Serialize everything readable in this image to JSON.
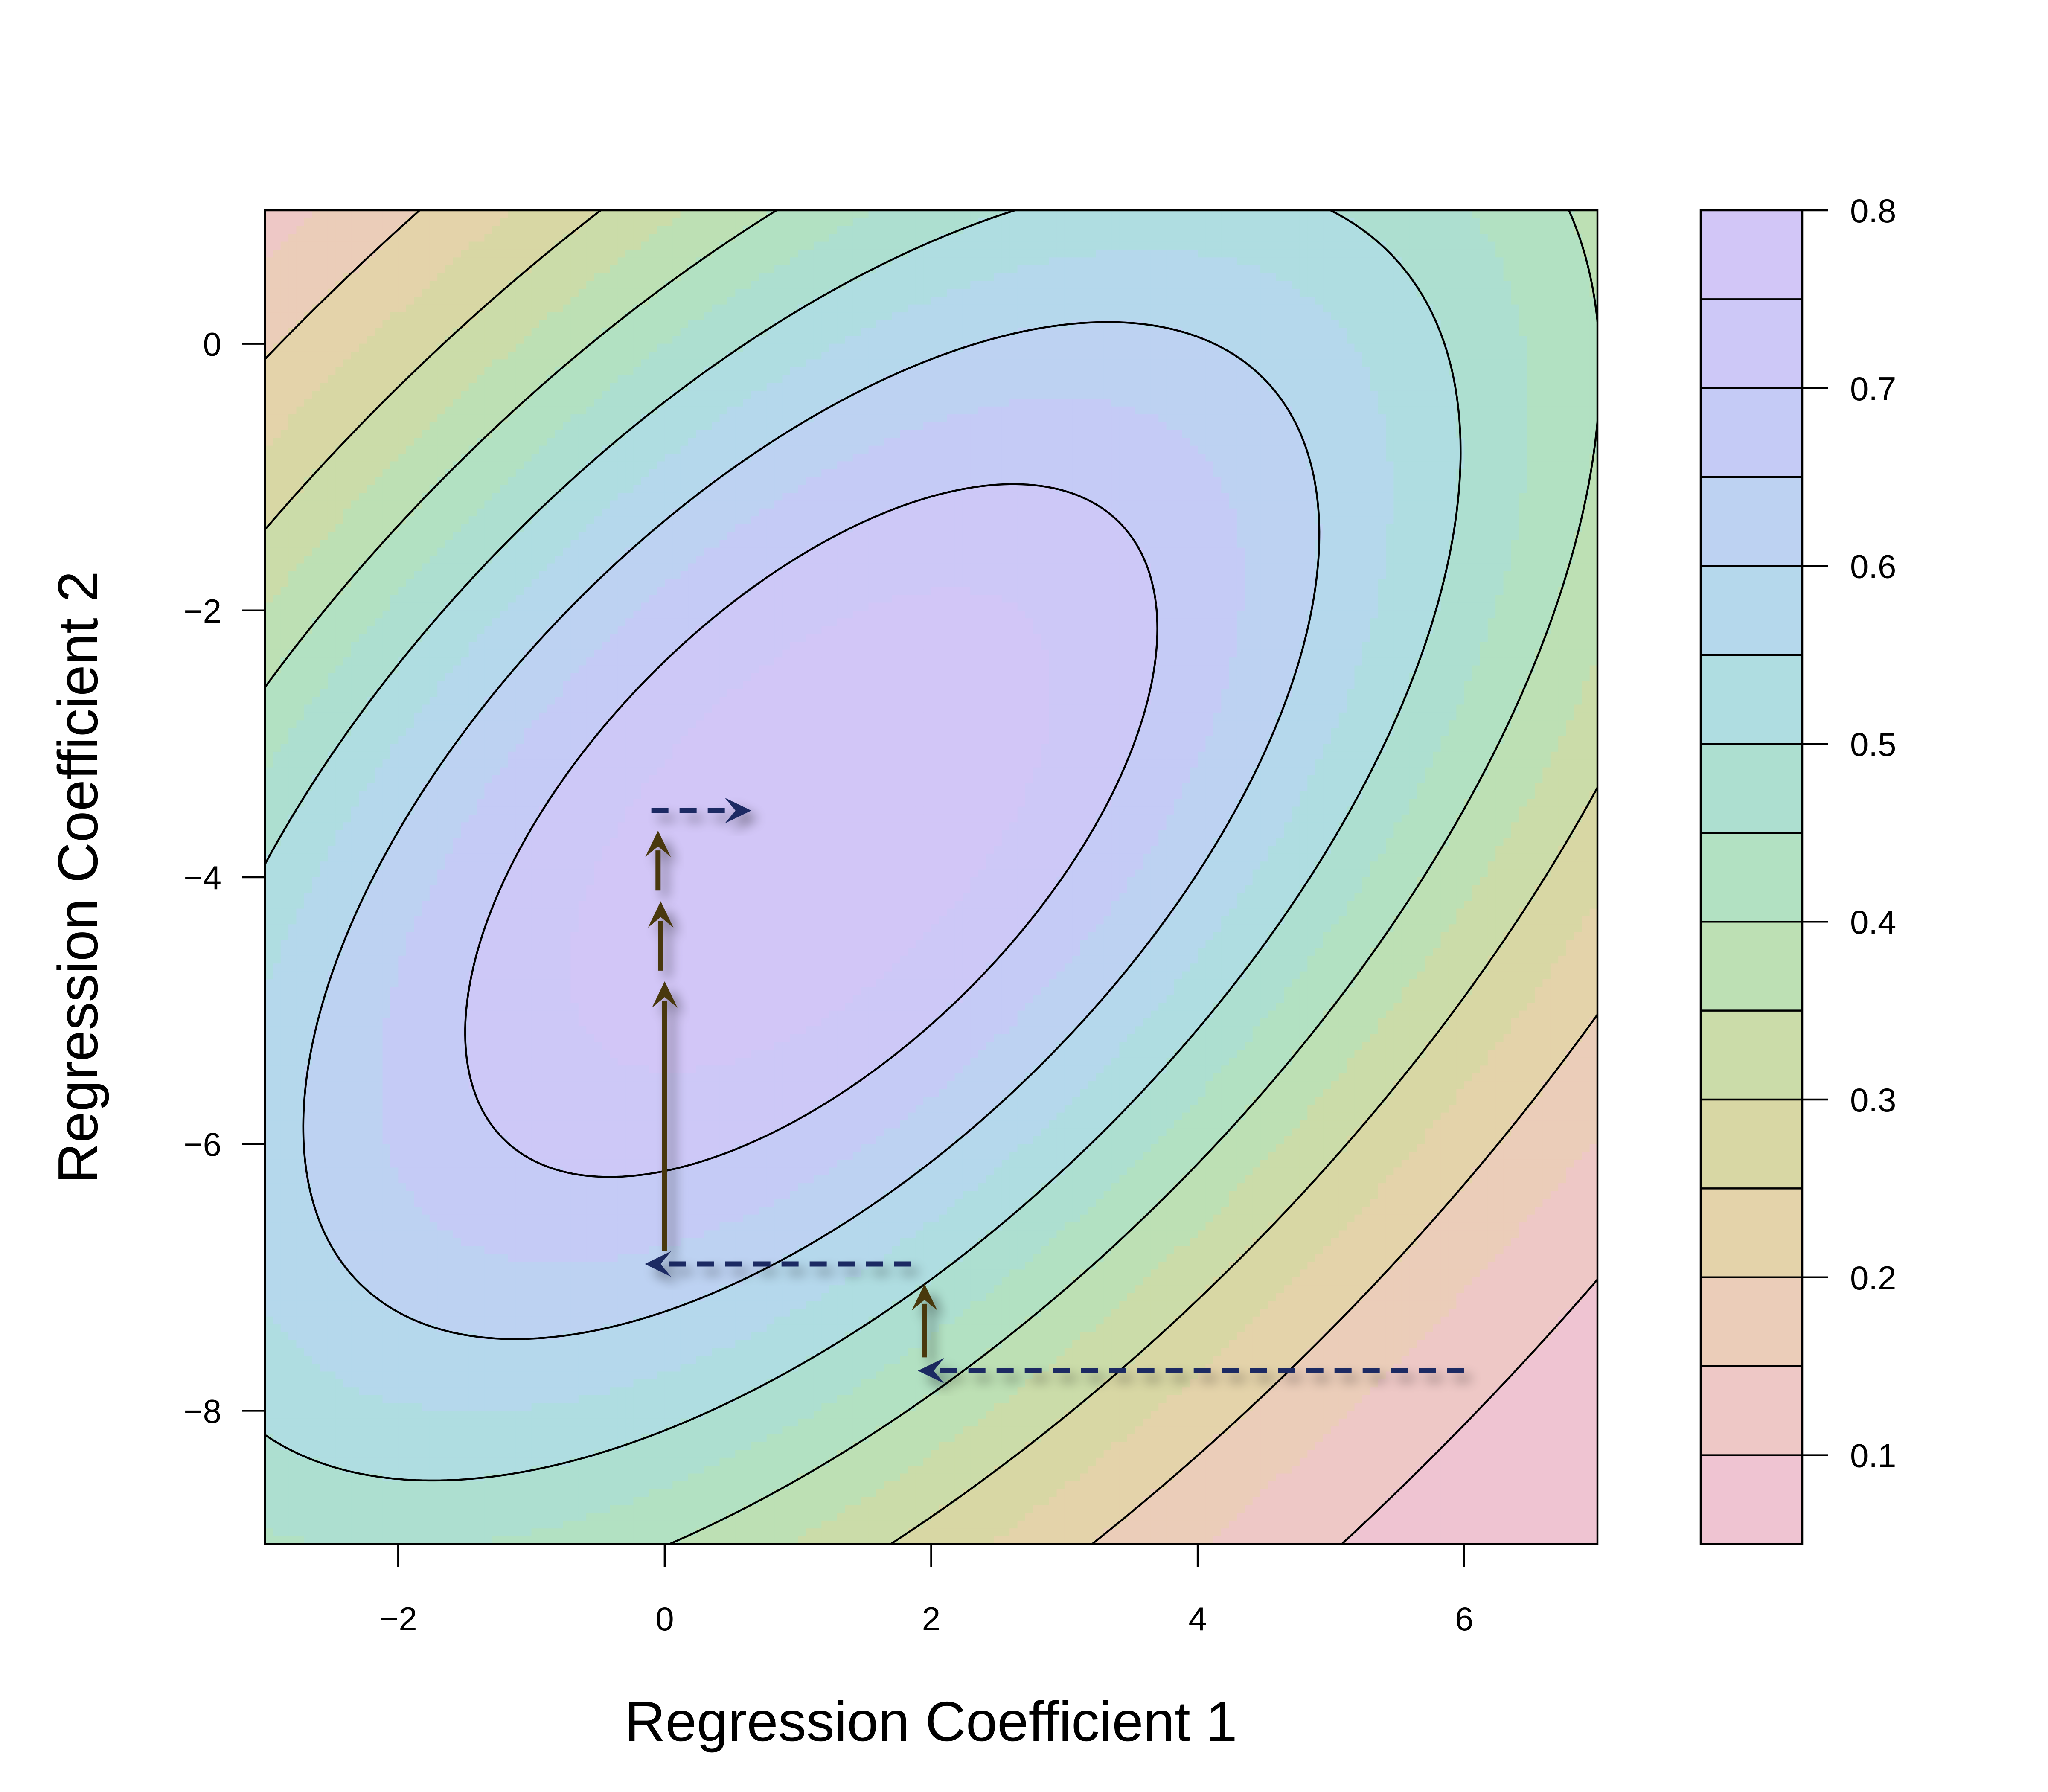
{
  "chart_data": {
    "type": "contour",
    "title": "",
    "xlabel": "Regression Coefficient 1",
    "ylabel": "Regression Coefficient 2",
    "xlim": [
      -3,
      7
    ],
    "ylim": [
      -9,
      1
    ],
    "xticks": [
      -2,
      0,
      2,
      4,
      6
    ],
    "xtick_labels": [
      "−2",
      "0",
      "2",
      "4",
      "6"
    ],
    "yticks": [
      -8,
      -6,
      -4,
      -2,
      0
    ],
    "ytick_labels": [
      "−8",
      "−6",
      "−4",
      "−2",
      "0"
    ],
    "grid": false,
    "colorbar": {
      "range": [
        0.05,
        0.8
      ],
      "level_edges": [
        0.05,
        0.1,
        0.15,
        0.2,
        0.25,
        0.3,
        0.35,
        0.4,
        0.45,
        0.5,
        0.55,
        0.6,
        0.65,
        0.7,
        0.75,
        0.8
      ],
      "ticks": [
        0.1,
        0.2,
        0.3,
        0.4,
        0.5,
        0.6,
        0.7,
        0.8
      ],
      "tick_labels": [
        "0.1",
        "0.2",
        "0.3",
        "0.4",
        "0.5",
        "0.6",
        "0.7",
        "0.8"
      ],
      "colors": [
        "#efc4d2",
        "#eec8c6",
        "#ebcdb9",
        "#e4d3aa",
        "#d8d7a4",
        "#cbdca9",
        "#bde0b4",
        "#b2e1c2",
        "#addfd0",
        "#afdde1",
        "#b5d8ec",
        "#bdd2f2",
        "#c5cbf6",
        "#cdc8f7",
        "#d2c6f7"
      ]
    },
    "surface": {
      "center": [
        1.1,
        -3.65
      ],
      "peak": 0.8,
      "contour_levels": [
        0.1,
        0.2,
        0.3,
        0.4,
        0.5,
        0.6,
        0.7
      ]
    },
    "arrows": [
      {
        "kind": "coefficient-1 step",
        "style": "dashed",
        "color": "#1d2b63",
        "from": [
          6,
          -7.7
        ],
        "to": [
          1.9,
          -7.7
        ]
      },
      {
        "kind": "coefficient-2 step",
        "style": "solid",
        "color": "#4a3810",
        "from": [
          1.95,
          -7.6
        ],
        "to": [
          1.95,
          -7.05
        ]
      },
      {
        "kind": "coefficient-1 step",
        "style": "dashed",
        "color": "#1d2b63",
        "from": [
          1.85,
          -6.9
        ],
        "to": [
          -0.15,
          -6.9
        ]
      },
      {
        "kind": "coefficient-2 step",
        "style": "solid",
        "color": "#4a3810",
        "from": [
          0,
          -6.8
        ],
        "to": [
          0,
          -4.78
        ]
      },
      {
        "kind": "coefficient-2 step",
        "style": "solid",
        "color": "#4a3810",
        "from": [
          -0.03,
          -4.7
        ],
        "to": [
          -0.03,
          -4.18
        ]
      },
      {
        "kind": "coefficient-2 step",
        "style": "solid",
        "color": "#4a3810",
        "from": [
          -0.05,
          -4.1
        ],
        "to": [
          -0.05,
          -3.65
        ]
      },
      {
        "kind": "coefficient-1 step",
        "style": "dashed",
        "color": "#1d2b63",
        "from": [
          -0.1,
          -3.5
        ],
        "to": [
          0.65,
          -3.5
        ]
      }
    ]
  }
}
